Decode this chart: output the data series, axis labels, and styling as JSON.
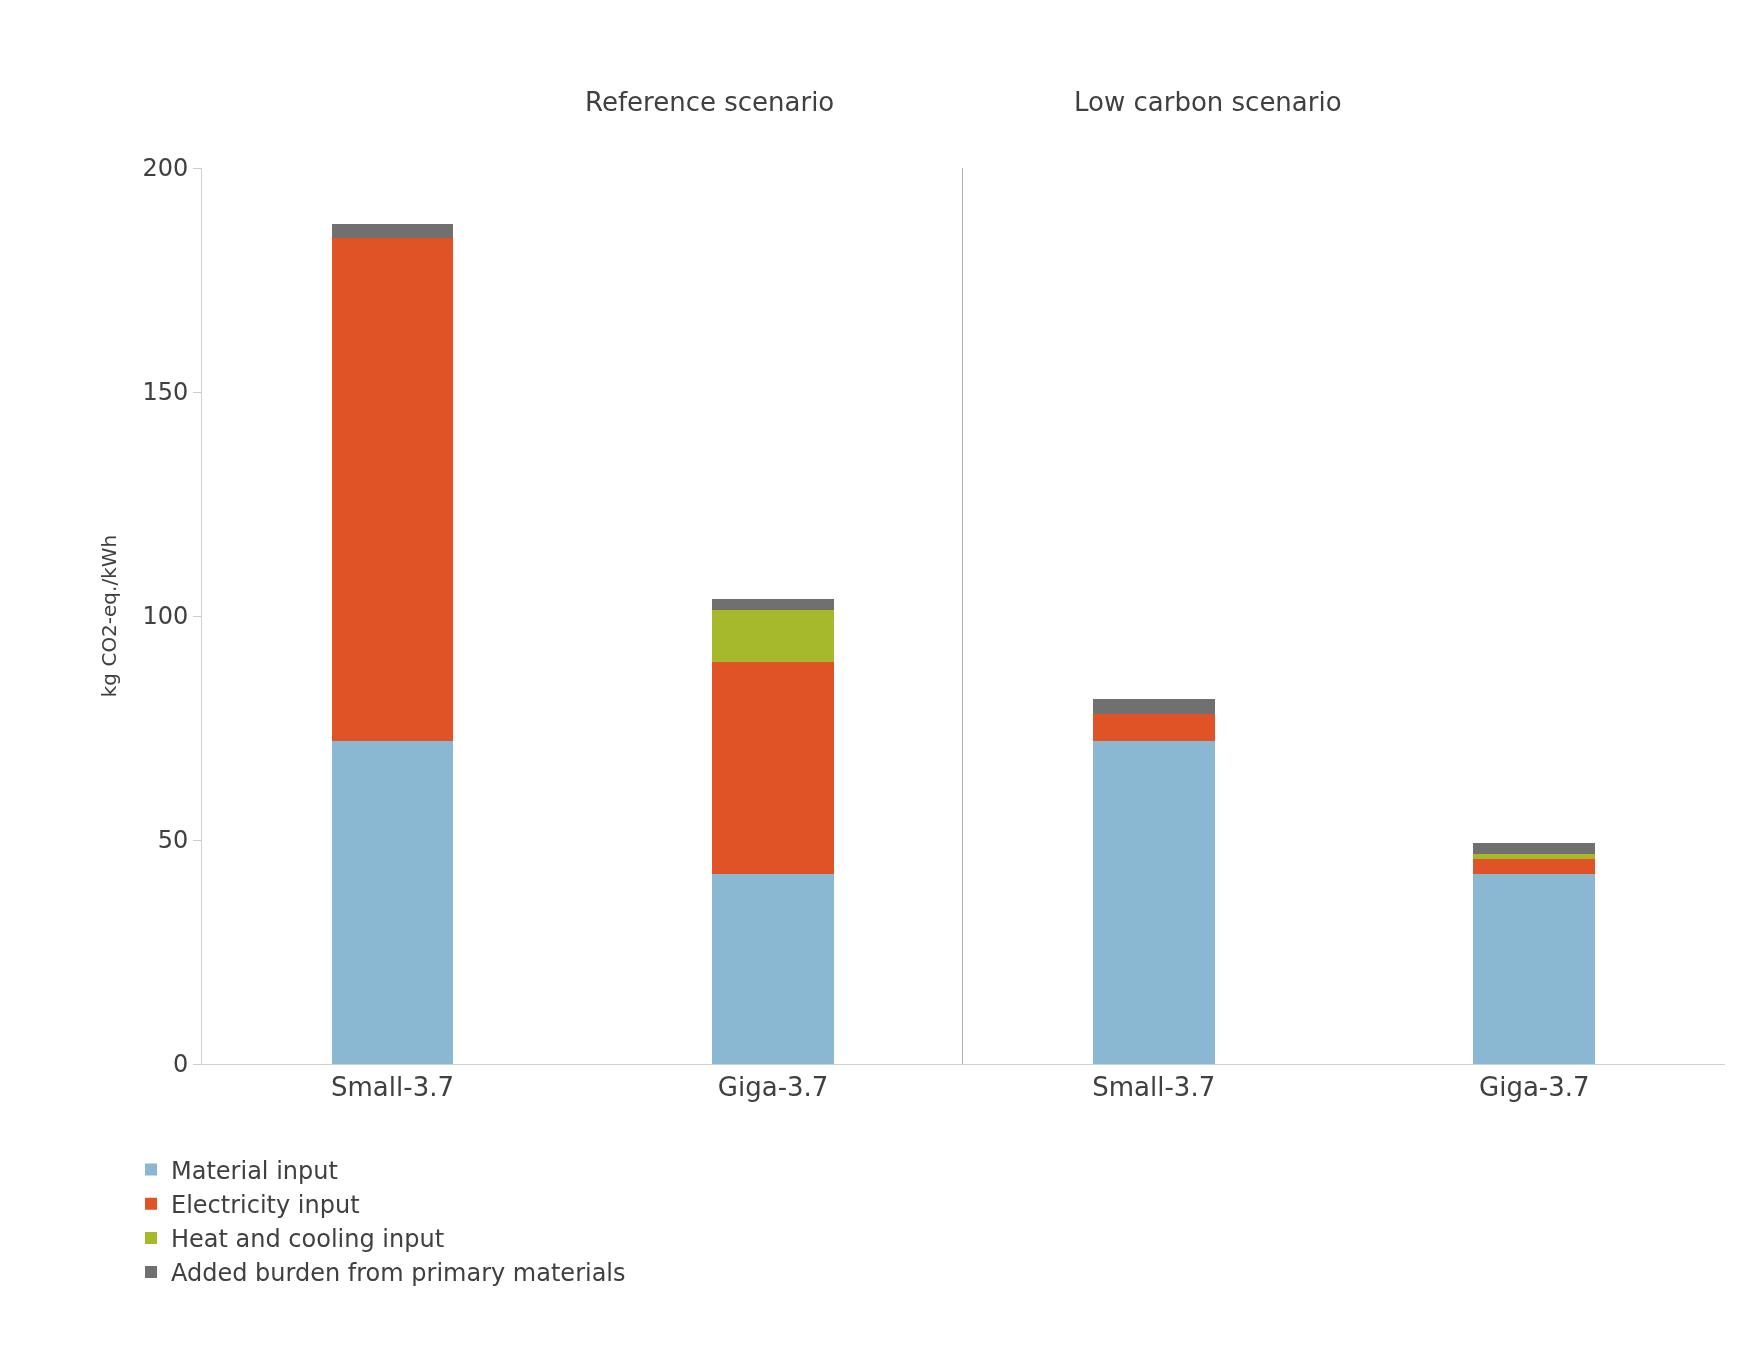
{
  "chart_data": [
    {
      "type": "bar",
      "title": "Reference scenario",
      "ylabel": "kg CO2-eq./kWh",
      "categories": [
        "Small-3.7",
        "Giga-3.7"
      ],
      "stacked": true,
      "ylim": [
        0,
        200
      ],
      "yticks": [
        0,
        50,
        100,
        150,
        200
      ],
      "legend": "bottom",
      "series": [
        {
          "name": "Material input",
          "color": "#8ab8d2",
          "values": [
            72,
            42.5
          ]
        },
        {
          "name": "Electricity input",
          "color": "#e05327",
          "values": [
            112.4,
            47.2
          ]
        },
        {
          "name": "Heat and cooling input",
          "color": "#a6b92a",
          "values": [
            0,
            11.7
          ]
        },
        {
          "name": "Added burden from primary materials",
          "color": "#707070",
          "values": [
            3,
            2.5
          ]
        }
      ]
    },
    {
      "type": "bar",
      "title": "Low carbon scenario",
      "categories": [
        "Small-3.7",
        "Giga-3.7"
      ],
      "stacked": true,
      "ylim": [
        0,
        200
      ],
      "yticks": [
        0,
        50,
        100,
        150,
        200
      ],
      "tick_labels": "x",
      "series": [
        {
          "color": "#8ab8d2",
          "values": [
            72,
            42.5
          ]
        },
        {
          "color": "#e05327",
          "values": [
            6.2,
            3.2
          ]
        },
        {
          "color": "#a6b92a",
          "values": [
            0,
            1.2
          ]
        },
        {
          "color": "#707070",
          "values": [
            3.2,
            2.5
          ]
        }
      ]
    }
  ]
}
